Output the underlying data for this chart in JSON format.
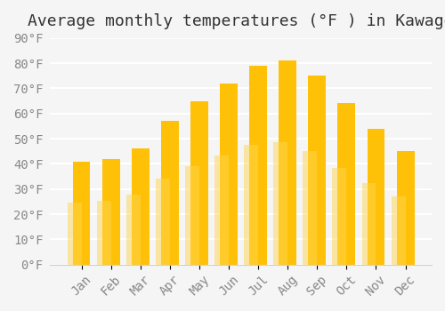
{
  "title": "Average monthly temperatures (°F ) in Kawage",
  "months": [
    "Jan",
    "Feb",
    "Mar",
    "Apr",
    "May",
    "Jun",
    "Jul",
    "Aug",
    "Sep",
    "Oct",
    "Nov",
    "Dec"
  ],
  "values": [
    41,
    42,
    46,
    57,
    65,
    72,
    79,
    81,
    75,
    64,
    54,
    45
  ],
  "bar_color_top": "#FFC107",
  "bar_color_bottom": "#FFD54F",
  "background_color": "#f5f5f5",
  "grid_color": "#ffffff",
  "ylim": [
    0,
    90
  ],
  "yticks": [
    0,
    10,
    20,
    30,
    40,
    50,
    60,
    70,
    80,
    90
  ],
  "title_fontsize": 13,
  "tick_fontsize": 10
}
